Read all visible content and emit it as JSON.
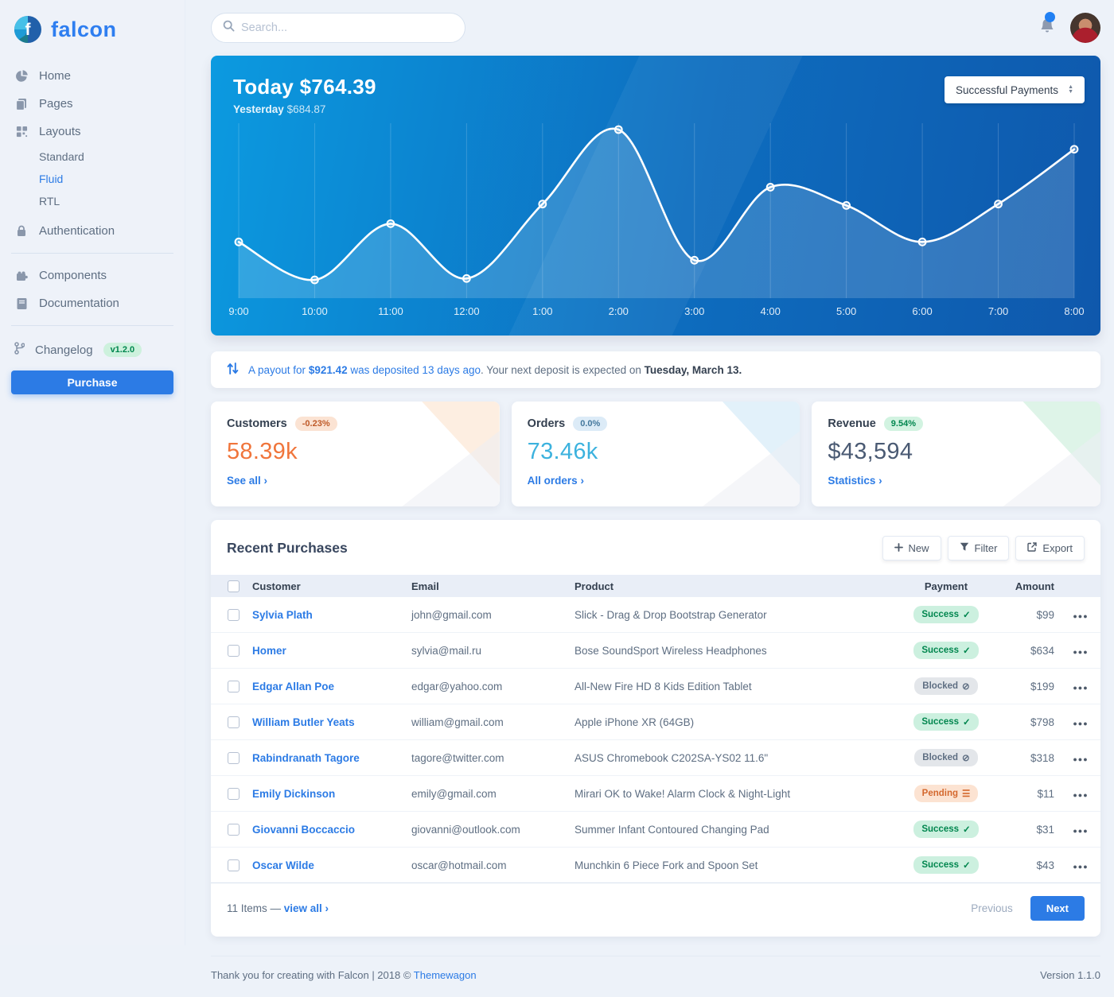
{
  "colors": {
    "primary": "#2c7be5",
    "customers_value": "#f0753b",
    "orders_value": "#3cb2de",
    "revenue_value": "#4a5a73"
  },
  "icons": {
    "success": "✓",
    "blocked": "⊘",
    "pending": "☰",
    "ellipsis": "●●●"
  },
  "sidebar": {
    "brand": "falcon",
    "nav": [
      {
        "label": "Home",
        "icon": "chart-pie"
      },
      {
        "label": "Pages",
        "icon": "pages"
      },
      {
        "label": "Layouts",
        "icon": "grid"
      }
    ],
    "layouts_children": [
      {
        "label": "Standard",
        "active": false
      },
      {
        "label": "Fluid",
        "active": true
      },
      {
        "label": "RTL",
        "active": false
      }
    ],
    "auth_label": "Authentication",
    "nav2": [
      {
        "label": "Components",
        "icon": "puzzle"
      },
      {
        "label": "Documentation",
        "icon": "book"
      }
    ],
    "changelog_label": "Changelog",
    "version_badge": "v1.2.0",
    "purchase_label": "Purchase"
  },
  "topbar": {
    "search_placeholder": "Search..."
  },
  "chart_card": {
    "today_label": "Today",
    "today_value": "$764.39",
    "yesterday_label": "Yesterday",
    "yesterday_value": "$684.87",
    "select_value": "Successful Payments"
  },
  "chart_data": {
    "type": "line",
    "title": "Hourly successful payments",
    "x": [
      "9:00",
      "10:00",
      "11:00",
      "12:00",
      "1:00",
      "2:00",
      "3:00",
      "4:00",
      "5:00",
      "6:00",
      "7:00",
      "8:00"
    ],
    "values": [
      4,
      1.3,
      5.3,
      1.4,
      6.7,
      12,
      2.7,
      7.9,
      6.6,
      4,
      6.7,
      10.6
    ],
    "ylim": [
      0,
      12
    ],
    "line_color": "#ffffff",
    "area_opacity": 0.16,
    "grid": "vertical-only",
    "legend": "none"
  },
  "notice": {
    "blue_text": "A payout for ",
    "amount": "$921.42",
    "blue_text2": " was deposited 13 days ago",
    "gray_text": ". Your next deposit is expected on ",
    "date": "Tuesday, March 13."
  },
  "stats": [
    {
      "title": "Customers",
      "badge": "-0.23%",
      "variant": "warning",
      "value": "58.39k",
      "value_color": "#f0753b",
      "link": "See all ›"
    },
    {
      "title": "Orders",
      "badge": "0.0%",
      "variant": "info",
      "value": "73.46k",
      "value_color": "#3cb2de",
      "link": "All orders ›"
    },
    {
      "title": "Revenue",
      "badge": "9.54%",
      "variant": "success",
      "value": "$43,594",
      "value_color": "#4a5a73",
      "link": "Statistics ›"
    }
  ],
  "purchases": {
    "title": "Recent Purchases",
    "buttons": [
      {
        "label": "New",
        "icon": "plus"
      },
      {
        "label": "Filter",
        "icon": "filter"
      },
      {
        "label": "Export",
        "icon": "export"
      }
    ],
    "columns": [
      "Customer",
      "Email",
      "Product",
      "Payment",
      "Amount"
    ],
    "rows": [
      {
        "customer": "Sylvia Plath",
        "email": "john@gmail.com",
        "product": "Slick - Drag & Drop Bootstrap Generator",
        "payment": "Success",
        "payment_variant": "success",
        "amount": "$99"
      },
      {
        "customer": "Homer",
        "email": "sylvia@mail.ru",
        "product": "Bose SoundSport Wireless Headphones",
        "payment": "Success",
        "payment_variant": "success",
        "amount": "$634"
      },
      {
        "customer": "Edgar Allan Poe",
        "email": "edgar@yahoo.com",
        "product": "All-New Fire HD 8 Kids Edition Tablet",
        "payment": "Blocked",
        "payment_variant": "blocked",
        "amount": "$199"
      },
      {
        "customer": "William Butler Yeats",
        "email": "william@gmail.com",
        "product": "Apple iPhone XR (64GB)",
        "payment": "Success",
        "payment_variant": "success",
        "amount": "$798"
      },
      {
        "customer": "Rabindranath Tagore",
        "email": "tagore@twitter.com",
        "product": "ASUS Chromebook C202SA-YS02 11.6\"",
        "payment": "Blocked",
        "payment_variant": "blocked",
        "amount": "$318"
      },
      {
        "customer": "Emily Dickinson",
        "email": "emily@gmail.com",
        "product": "Mirari OK to Wake! Alarm Clock & Night-Light",
        "payment": "Pending",
        "payment_variant": "pending",
        "amount": "$11"
      },
      {
        "customer": "Giovanni Boccaccio",
        "email": "giovanni@outlook.com",
        "product": "Summer Infant Contoured Changing Pad",
        "payment": "Success",
        "payment_variant": "success",
        "amount": "$31"
      },
      {
        "customer": "Oscar Wilde",
        "email": "oscar@hotmail.com",
        "product": "Munchkin 6 Piece Fork and Spoon Set",
        "payment": "Success",
        "payment_variant": "success",
        "amount": "$43"
      }
    ],
    "footer": {
      "items_text": "11 Items — ",
      "view_all": "view all ›",
      "previous": "Previous",
      "next": "Next"
    }
  },
  "footer": {
    "thanks_text": "Thank you for creating with Falcon | 2018 © ",
    "vendor_link": "Themewagon",
    "version": "Version 1.1.0"
  }
}
